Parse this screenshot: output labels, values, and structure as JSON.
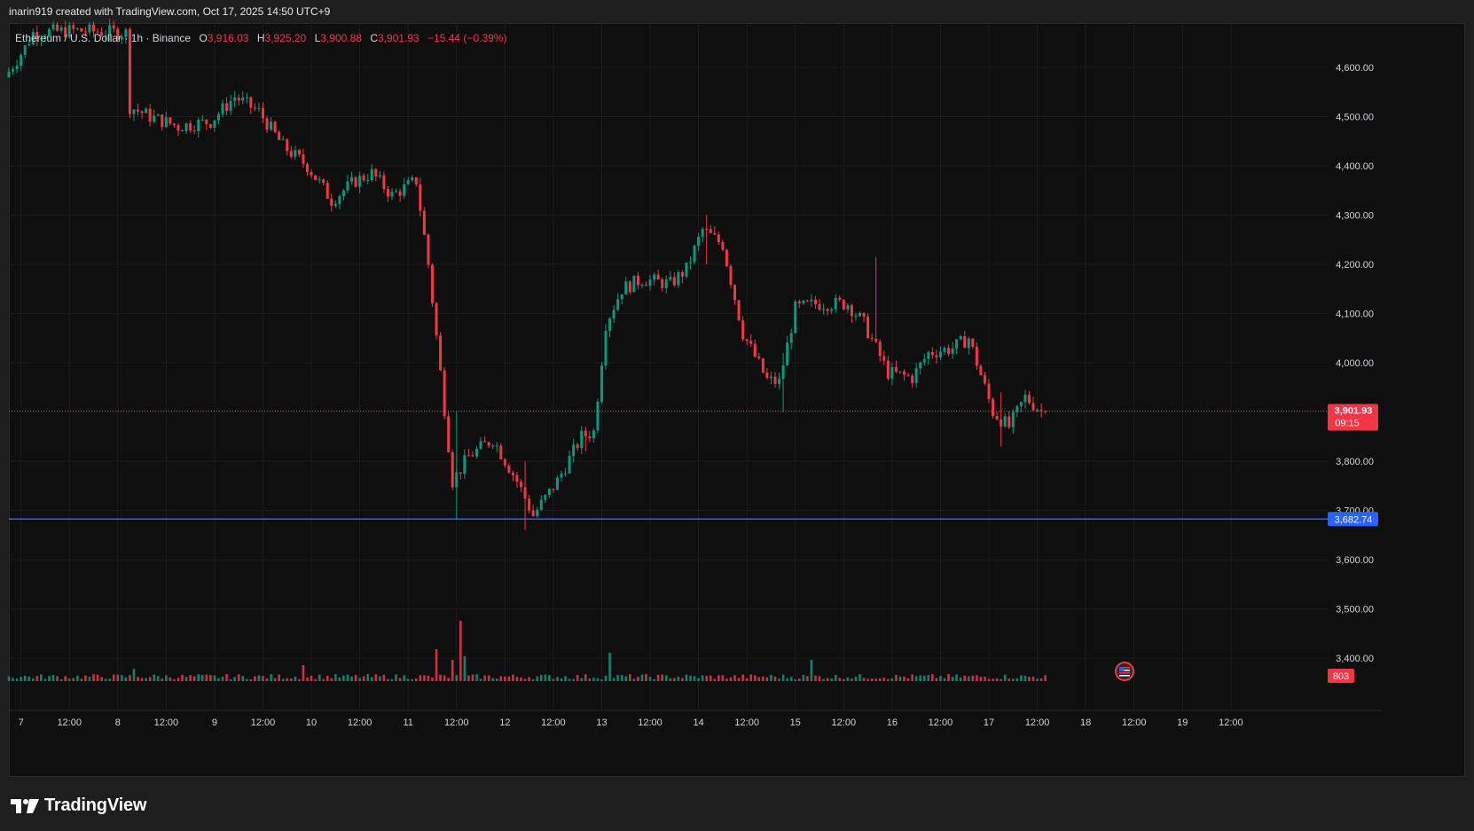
{
  "credit": "inarin919 created with TradingView.com, Oct 17, 2025 14:50 UTC+9",
  "legend": {
    "symbol": "Ethereum / U.S. Dollar · 1h · Binance",
    "open_label": "O",
    "open": "3,916.03",
    "high_label": "H",
    "high": "3,925.20",
    "low_label": "L",
    "low": "3,900.88",
    "close_label": "C",
    "close": "3,901.93",
    "change": "−15.44 (−0.39%)"
  },
  "branding": {
    "logo_text": "TradingView",
    "logo_icon": "tradingview-logo-icon"
  },
  "colors": {
    "up": "#089981",
    "down": "#f23645",
    "horizontal_line": "#2962ff",
    "background": "#0f0f0f",
    "grid": "#1c1c1c",
    "event_flag": "us-flag-icon"
  },
  "chart_data": {
    "type": "candlestick",
    "symbol": "Ethereum / U.S. Dollar",
    "interval": "1h",
    "exchange": "Binance",
    "ylim": [
      3350,
      4690
    ],
    "y_ticks": [
      3400,
      3500,
      3600,
      3700,
      3800,
      3900,
      4000,
      4100,
      4200,
      4300,
      4400,
      4500,
      4600
    ],
    "y_tick_labels": [
      "3,400.00",
      "3,500.00",
      "3,600.00",
      "3,700.00",
      "3,800.00",
      "3,900.00",
      "4,000.00",
      "4,100.00",
      "4,200.00",
      "4,300.00",
      "4,400.00",
      "4,500.00",
      "4,600.00"
    ],
    "x_ticks": [
      {
        "label": "7",
        "hour": 0
      },
      {
        "label": "12:00",
        "hour": 12
      },
      {
        "label": "8",
        "hour": 24
      },
      {
        "label": "12:00",
        "hour": 36
      },
      {
        "label": "9",
        "hour": 48
      },
      {
        "label": "12:00",
        "hour": 60
      },
      {
        "label": "10",
        "hour": 72
      },
      {
        "label": "12:00",
        "hour": 84
      },
      {
        "label": "11",
        "hour": 96
      },
      {
        "label": "12:00",
        "hour": 108
      },
      {
        "label": "12",
        "hour": 120
      },
      {
        "label": "12:00",
        "hour": 132
      },
      {
        "label": "13",
        "hour": 144
      },
      {
        "label": "12:00",
        "hour": 156
      },
      {
        "label": "14",
        "hour": 168
      },
      {
        "label": "12:00",
        "hour": 180
      },
      {
        "label": "15",
        "hour": 192
      },
      {
        "label": "12:00",
        "hour": 204
      },
      {
        "label": "16",
        "hour": 216
      },
      {
        "label": "12:00",
        "hour": 228
      },
      {
        "label": "17",
        "hour": 240
      },
      {
        "label": "12:00",
        "hour": 252
      },
      {
        "label": "18",
        "hour": 264
      },
      {
        "label": "12:00",
        "hour": 276
      },
      {
        "label": "19",
        "hour": 288
      },
      {
        "label": "12:00",
        "hour": 300
      }
    ],
    "x_range_hours": [
      -3,
      324
    ],
    "anchors": [
      [
        -3,
        4580
      ],
      [
        2,
        4640
      ],
      [
        4,
        4670
      ],
      [
        14,
        4675
      ],
      [
        27,
        4670
      ],
      [
        28,
        4520
      ],
      [
        33,
        4500
      ],
      [
        40,
        4480
      ],
      [
        48,
        4490
      ],
      [
        54,
        4540
      ],
      [
        60,
        4510
      ],
      [
        66,
        4440
      ],
      [
        72,
        4400
      ],
      [
        78,
        4330
      ],
      [
        84,
        4370
      ],
      [
        88,
        4385
      ],
      [
        93,
        4340
      ],
      [
        99,
        4370
      ],
      [
        102,
        4200
      ],
      [
        105,
        3980
      ],
      [
        108,
        3760
      ],
      [
        112,
        3810
      ],
      [
        118,
        3845
      ],
      [
        124,
        3760
      ],
      [
        128,
        3690
      ],
      [
        134,
        3760
      ],
      [
        140,
        3850
      ],
      [
        143,
        3860
      ],
      [
        146,
        4080
      ],
      [
        150,
        4150
      ],
      [
        155,
        4170
      ],
      [
        162,
        4160
      ],
      [
        166,
        4190
      ],
      [
        170,
        4270
      ],
      [
        175,
        4240
      ],
      [
        180,
        4060
      ],
      [
        186,
        3965
      ],
      [
        189,
        3960
      ],
      [
        193,
        4110
      ],
      [
        198,
        4120
      ],
      [
        206,
        4120
      ],
      [
        210,
        4080
      ],
      [
        216,
        3980
      ],
      [
        222,
        3970
      ],
      [
        226,
        4020
      ],
      [
        232,
        4030
      ],
      [
        236,
        4050
      ],
      [
        242,
        3900
      ],
      [
        246,
        3870
      ],
      [
        250,
        3930
      ],
      [
        254,
        3902
      ]
    ],
    "spikes": [
      {
        "hour": 108,
        "low": 3682,
        "high": 3900
      },
      {
        "hour": 125,
        "low": 3660,
        "high": 3800
      },
      {
        "hour": 140,
        "low": 3820,
        "high": 3870
      },
      {
        "hour": 170,
        "low": 4200,
        "high": 4300
      },
      {
        "hour": 189,
        "low": 3900,
        "high": 4020
      },
      {
        "hour": 212,
        "low": 4040,
        "high": 4215
      },
      {
        "hour": 243,
        "low": 3830,
        "high": 3940
      }
    ],
    "last_bar_hour": 254,
    "volume_spikes": [
      {
        "hour": 103,
        "value": 36
      },
      {
        "hour": 107,
        "value": 24
      },
      {
        "hour": 109,
        "value": 68
      },
      {
        "hour": 110,
        "value": 28
      },
      {
        "hour": 146,
        "value": 32
      },
      {
        "hour": 196,
        "value": 24
      },
      {
        "hour": 28,
        "value": 14
      },
      {
        "hour": 70,
        "value": 18
      }
    ],
    "last_price": 3901.93,
    "last_price_label": "3,901.93",
    "countdown": "09:15",
    "horizontal_line": {
      "price": 3682.74,
      "label": "3,682.74"
    },
    "volume_label": "803"
  }
}
